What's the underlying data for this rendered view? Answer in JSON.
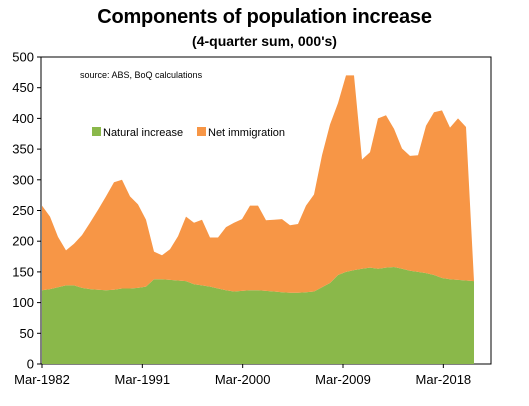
{
  "chart_data": {
    "type": "area",
    "stacked": true,
    "title": "Components of population increase",
    "subtitle": "(4-quarter sum, 000's)",
    "source": "source:  ABS, BoQ calculations",
    "xlabel": "",
    "ylabel": "",
    "ylim": [
      0,
      500
    ],
    "yticks": [
      "0",
      "50",
      "100",
      "150",
      "200",
      "250",
      "300",
      "350",
      "400",
      "450",
      "500"
    ],
    "x_start": "Mar-1982",
    "x_end": "Dec-2020",
    "x_tick_labels": [
      "Mar-1982",
      "Mar-1991",
      "Mar-2000",
      "Mar-2009",
      "Mar-2018"
    ],
    "legend": [
      "Natural increase",
      "Net immigration"
    ],
    "legend_position": "upper-left inside",
    "colors": {
      "natural": "#8ab84a",
      "immigration": "#f79646"
    },
    "grid": false,
    "series": [
      {
        "name": "Natural increase",
        "values": [
          120,
          122,
          125,
          128,
          128,
          124,
          122,
          121,
          120,
          121,
          123,
          123,
          124,
          126,
          138,
          138,
          137,
          136,
          135,
          130,
          128,
          126,
          123,
          120,
          118,
          119,
          120,
          120,
          119,
          118,
          117,
          116,
          116,
          117,
          118,
          125,
          132,
          145,
          150,
          153,
          155,
          157,
          155,
          157,
          158,
          155,
          152,
          150,
          148,
          145,
          140,
          138,
          137,
          136,
          135
        ]
      },
      {
        "name": "Net immigration",
        "values": [
          138,
          118,
          82,
          57,
          68,
          86,
          108,
          130,
          153,
          175,
          177,
          150,
          136,
          109,
          45,
          39,
          50,
          72,
          105,
          100,
          107,
          80,
          83,
          103,
          112,
          117,
          138,
          138,
          115,
          117,
          119,
          110,
          112,
          141,
          158,
          215,
          258,
          280,
          320,
          317,
          178,
          188,
          245,
          248,
          225,
          196,
          187,
          190,
          240,
          265,
          273,
          247,
          263,
          250,
          0
        ]
      }
    ]
  }
}
